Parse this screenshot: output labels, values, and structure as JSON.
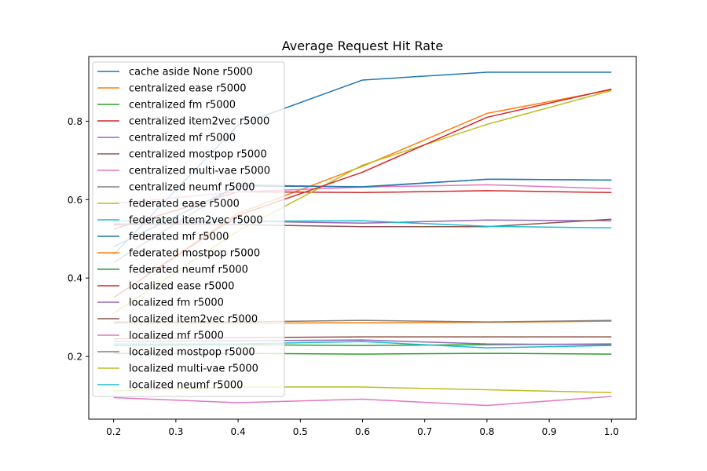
{
  "chart_data": {
    "type": "line",
    "title": "Average Request Hit Rate",
    "xlabel": "",
    "ylabel": "",
    "xlim": [
      0.16,
      1.04
    ],
    "ylim": [
      0.04,
      0.965
    ],
    "xticks": [
      0.2,
      0.3,
      0.4,
      0.5,
      0.6,
      0.7,
      0.8,
      0.9,
      1.0
    ],
    "xtick_labels": [
      "0.2",
      "0.3",
      "0.4",
      "0.5",
      "0.6",
      "0.7",
      "0.8",
      "0.9",
      "1.0"
    ],
    "yticks": [
      0.2,
      0.4,
      0.6,
      0.8
    ],
    "ytick_labels": [
      "0.2",
      "0.4",
      "0.6",
      "0.8"
    ],
    "grid": false,
    "legend_position": "upper-left",
    "x": [
      0.2,
      0.4,
      0.6,
      0.8,
      1.0
    ],
    "series": [
      {
        "name": "cache aside None r5000",
        "color": "#1f77b4",
        "values": [
          0.46,
          0.79,
          0.905,
          0.925,
          0.925
        ]
      },
      {
        "name": "centralized ease r5000",
        "color": "#ff7f0e",
        "values": [
          0.35,
          0.565,
          0.685,
          0.82,
          0.88
        ]
      },
      {
        "name": "centralized fm r5000",
        "color": "#2ca02c",
        "values": [
          0.228,
          0.23,
          0.228,
          0.23,
          0.232
        ]
      },
      {
        "name": "centralized item2vec r5000",
        "color": "#d62728",
        "values": [
          0.525,
          0.62,
          0.618,
          0.623,
          0.618
        ]
      },
      {
        "name": "centralized mf r5000",
        "color": "#9467bd",
        "values": [
          0.535,
          0.545,
          0.54,
          0.548,
          0.546
        ]
      },
      {
        "name": "centralized mostpop r5000",
        "color": "#8c564b",
        "values": [
          0.538,
          0.536,
          0.531,
          0.531,
          0.55
        ]
      },
      {
        "name": "centralized multi-vae r5000",
        "color": "#e377c2",
        "values": [
          0.59,
          0.62,
          0.632,
          0.638,
          0.628
        ]
      },
      {
        "name": "centralized neumf r5000",
        "color": "#7f7f7f",
        "values": [
          0.44,
          0.638,
          0.632,
          0.652,
          0.65
        ]
      },
      {
        "name": "federated ease r5000",
        "color": "#bcbd22",
        "values": [
          0.31,
          0.52,
          0.688,
          0.792,
          0.878
        ]
      },
      {
        "name": "federated item2vec r5000",
        "color": "#17becf",
        "values": [
          0.545,
          0.545,
          0.546,
          0.532,
          0.528
        ]
      },
      {
        "name": "federated mf r5000",
        "color": "#1f77b4",
        "values": [
          0.48,
          0.635,
          0.633,
          0.652,
          0.65
        ]
      },
      {
        "name": "federated mostpop r5000",
        "color": "#ff7f0e",
        "values": [
          0.285,
          0.285,
          0.286,
          0.287,
          0.29
        ]
      },
      {
        "name": "federated neumf r5000",
        "color": "#2ca02c",
        "values": [
          0.208,
          0.208,
          0.206,
          0.208,
          0.206
        ]
      },
      {
        "name": "localized ease r5000",
        "color": "#d62728",
        "values": [
          0.35,
          0.56,
          0.67,
          0.81,
          0.882
        ]
      },
      {
        "name": "localized fm r5000",
        "color": "#9467bd",
        "values": [
          0.238,
          0.24,
          0.242,
          0.232,
          0.23
        ]
      },
      {
        "name": "localized item2vec r5000",
        "color": "#8c564b",
        "values": [
          0.245,
          0.248,
          0.25,
          0.25,
          0.25
        ]
      },
      {
        "name": "localized mf r5000",
        "color": "#e377c2",
        "values": [
          0.095,
          0.082,
          0.091,
          0.075,
          0.098
        ]
      },
      {
        "name": "localized mostpop r5000",
        "color": "#7f7f7f",
        "values": [
          0.288,
          0.288,
          0.292,
          0.288,
          0.292
        ]
      },
      {
        "name": "localized multi-vae r5000",
        "color": "#bcbd22",
        "values": [
          0.112,
          0.122,
          0.122,
          0.115,
          0.108
        ]
      },
      {
        "name": "localized neumf r5000",
        "color": "#17becf",
        "values": [
          0.232,
          0.232,
          0.238,
          0.222,
          0.228
        ]
      }
    ]
  }
}
